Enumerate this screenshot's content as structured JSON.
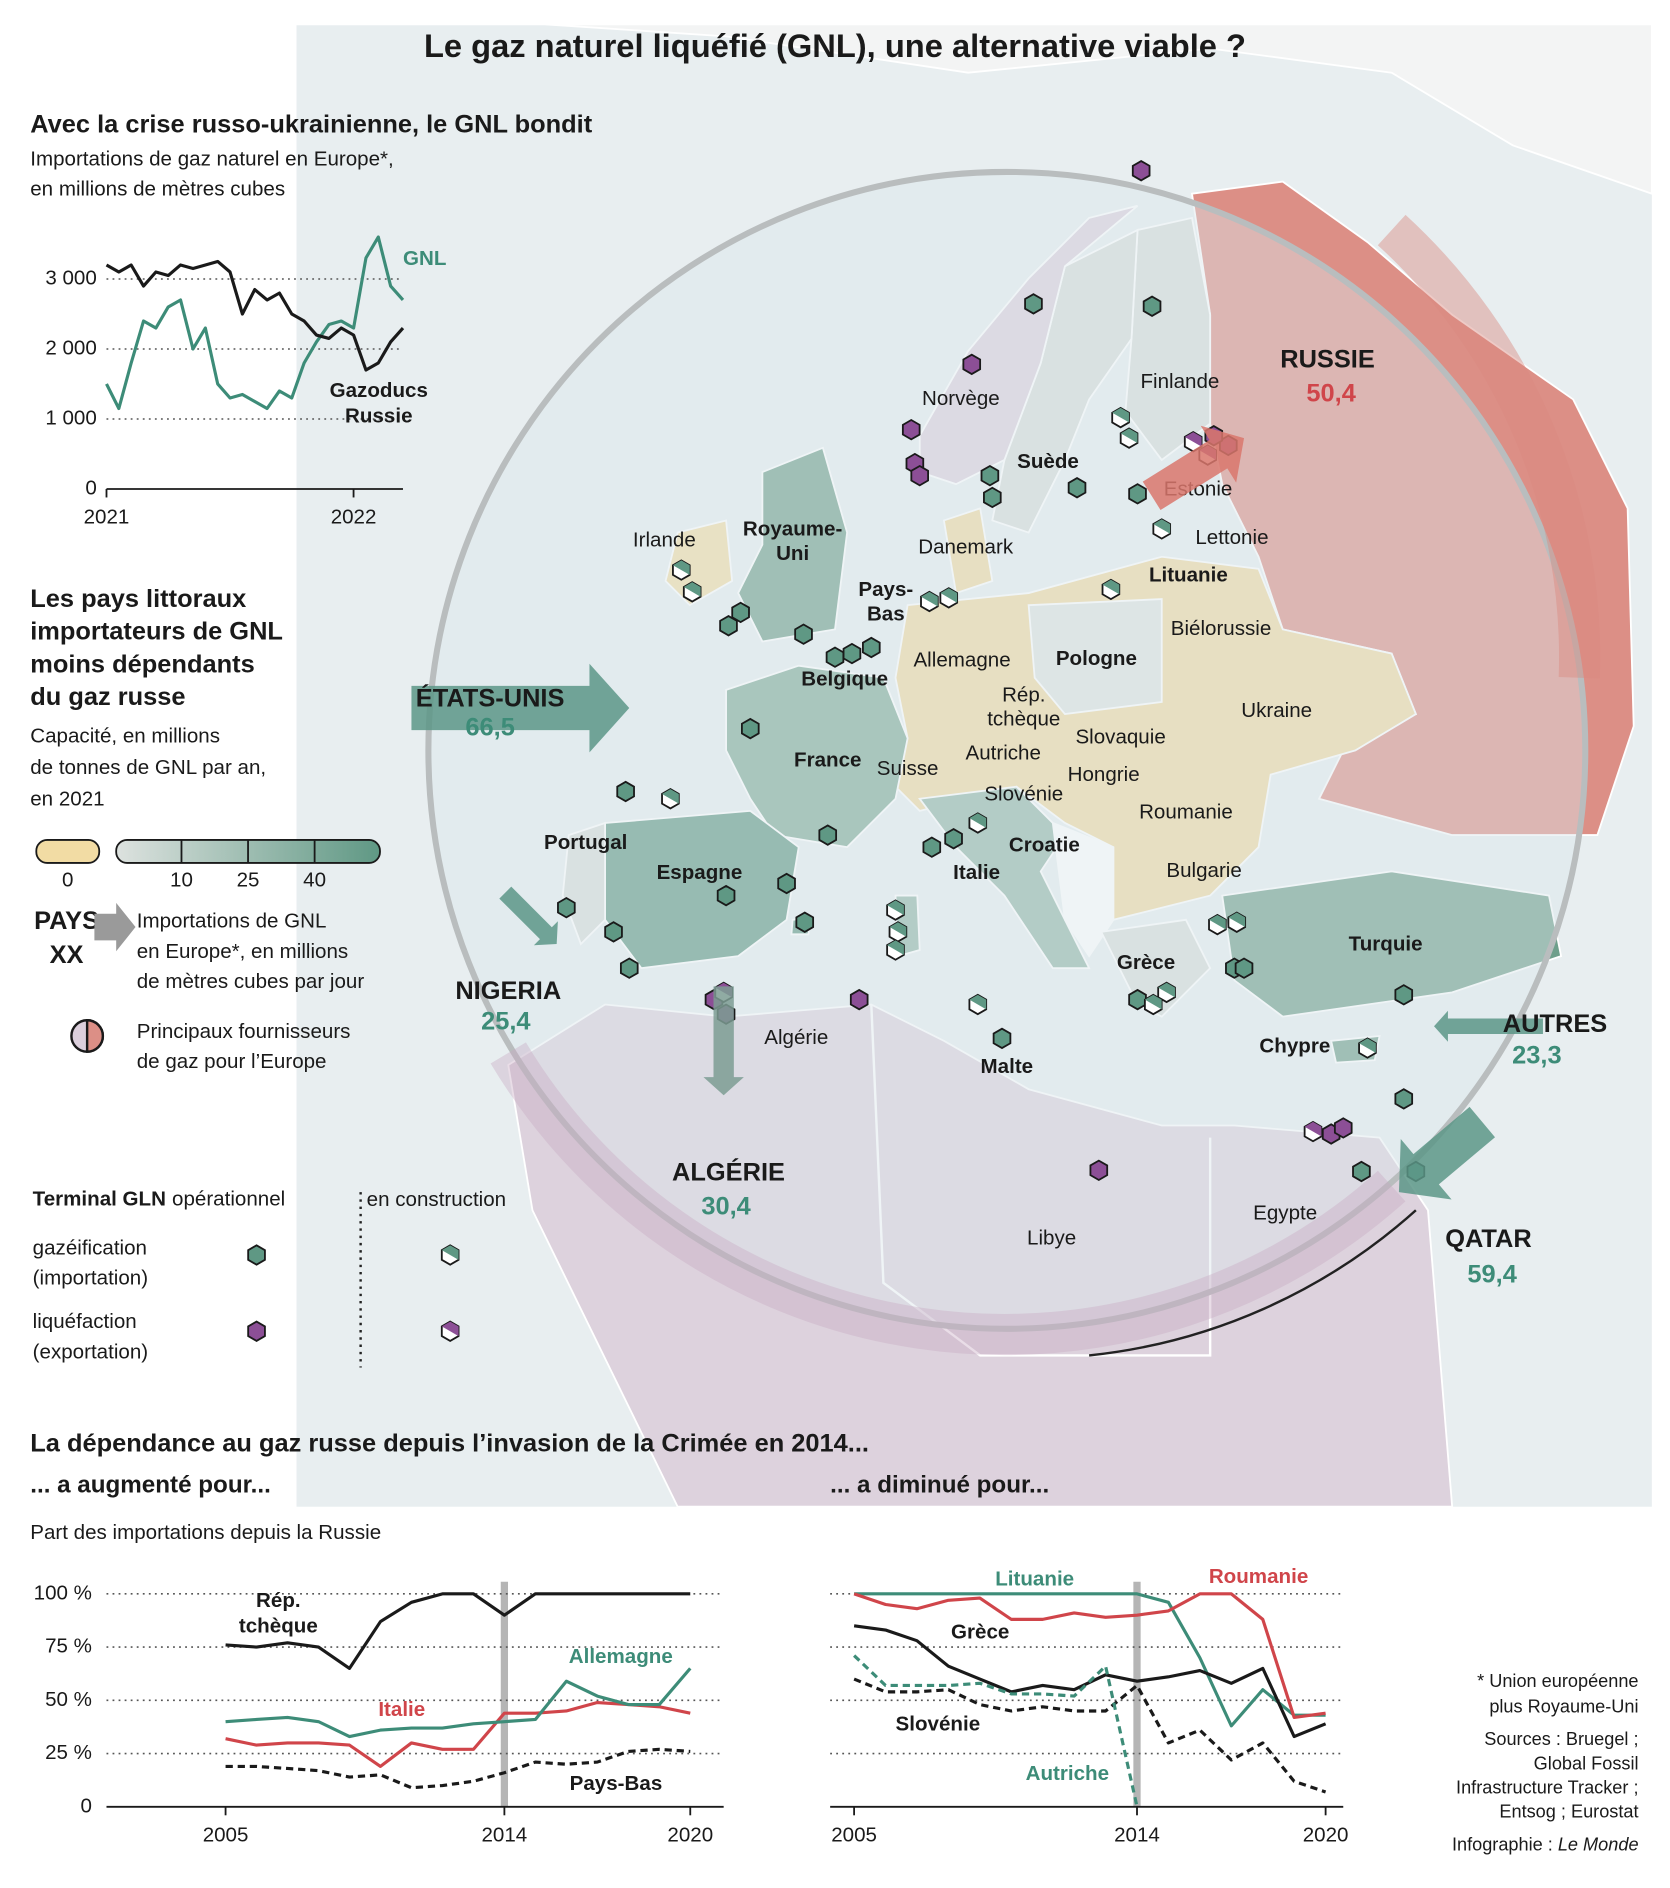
{
  "title": "Le gaz naturel liquéfié (GNL), une alternative viable ?",
  "chart_data": [
    {
      "type": "line",
      "title": "Avec la crise russo-ukrainienne, le GNL bondit",
      "subtitle": [
        "Importations de gaz naturel en Europe*,",
        "en millions de mètres cubes"
      ],
      "x": [
        2021,
        2021.05,
        2021.1,
        2021.15,
        2021.2,
        2021.25,
        2021.3,
        2021.35,
        2021.4,
        2021.45,
        2021.5,
        2021.55,
        2021.6,
        2021.65,
        2021.7,
        2021.75,
        2021.8,
        2021.85,
        2021.9,
        2021.95,
        2022,
        2022.05,
        2022.1,
        2022.15,
        2022.2
      ],
      "xlim": [
        2021,
        2022.2
      ],
      "xticks": [
        2021,
        2022
      ],
      "ylim": [
        0,
        3700
      ],
      "yticks": [
        0,
        {
          "value": 1000,
          "label": "1 000"
        },
        {
          "value": 2000,
          "label": "2 000"
        },
        {
          "value": 3000,
          "label": "3 000"
        }
      ],
      "grid": true,
      "series": [
        {
          "name": "GNL",
          "color": "#3d8c78",
          "values": [
            1500,
            1150,
            1800,
            2400,
            2300,
            2600,
            2700,
            2000,
            2300,
            1500,
            1300,
            1350,
            1250,
            1150,
            1400,
            1300,
            1800,
            2100,
            2350,
            2400,
            2300,
            3300,
            3600,
            2900,
            2700
          ]
        },
        {
          "name": "Gazoducs Russie",
          "color": "#1a1a1a",
          "values": [
            3200,
            3100,
            3200,
            2900,
            3100,
            3050,
            3200,
            3150,
            3200,
            3250,
            3100,
            2500,
            2850,
            2700,
            2800,
            2500,
            2400,
            2200,
            2150,
            2300,
            2200,
            1700,
            1800,
            2100,
            2300
          ]
        }
      ]
    },
    {
      "type": "line",
      "title": "... a augmenté pour...",
      "subtitle": "Part des importations depuis la Russie",
      "x": [
        2005,
        2006,
        2007,
        2008,
        2009,
        2010,
        2011,
        2012,
        2013,
        2014,
        2015,
        2016,
        2017,
        2018,
        2019,
        2020
      ],
      "xlim": [
        2001,
        2021
      ],
      "xticks": [
        2005,
        2014,
        2020
      ],
      "highlight": 2014,
      "ylim": [
        0,
        100
      ],
      "yticks": [
        0,
        {
          "value": 25,
          "label": "25 %"
        },
        {
          "value": 50,
          "label": "50 %"
        },
        {
          "value": 75,
          "label": "75 %"
        },
        {
          "value": 100,
          "label": "100 %"
        }
      ],
      "grid": true,
      "series": [
        {
          "name": "Rép. tchèque",
          "color": "#1a1a1a",
          "values": [
            76,
            75,
            77,
            75,
            65,
            87,
            96,
            100,
            100,
            90,
            100,
            100,
            100,
            100,
            100,
            100
          ]
        },
        {
          "name": "Italie",
          "color": "#d0454a",
          "values": [
            32,
            29,
            30,
            30,
            29,
            19,
            30,
            27,
            27,
            44,
            44,
            45,
            49,
            48,
            47,
            44
          ]
        },
        {
          "name": "Allemagne",
          "color": "#3d8c78",
          "values": [
            40,
            41,
            42,
            40,
            33,
            36,
            37,
            37,
            39,
            40,
            41,
            59,
            52,
            48,
            48,
            65
          ]
        },
        {
          "name": "Pays-Bas",
          "color": "#1a1a1a",
          "dash": true,
          "values": [
            19,
            19,
            18,
            17,
            14,
            15,
            9,
            10,
            12,
            16,
            21,
            20,
            21,
            26,
            27,
            26
          ]
        }
      ]
    },
    {
      "type": "line",
      "title": "... a diminué pour...",
      "x": [
        2005,
        2006,
        2007,
        2008,
        2009,
        2010,
        2011,
        2012,
        2013,
        2014,
        2015,
        2016,
        2017,
        2018,
        2019,
        2020
      ],
      "xlim": [
        2004.2,
        2020.6
      ],
      "xticks": [
        2005,
        2014,
        2020
      ],
      "highlight": 2014,
      "ylim": [
        0,
        100
      ],
      "yticks": [
        0,
        25,
        50,
        75,
        100
      ],
      "grid": true,
      "series": [
        {
          "name": "Lituanie",
          "color": "#3d8c78",
          "values": [
            100,
            100,
            100,
            100,
            100,
            100,
            100,
            100,
            100,
            100,
            96,
            70,
            38,
            55,
            43,
            43
          ]
        },
        {
          "name": "Roumanie",
          "color": "#d0454a",
          "values": [
            100,
            95,
            93,
            97,
            98,
            88,
            88,
            91,
            89,
            90,
            92,
            100,
            100,
            88,
            42,
            44
          ]
        },
        {
          "name": "Grèce",
          "color": "#1a1a1a",
          "values": [
            85,
            83,
            78,
            66,
            60,
            54,
            57,
            55,
            62,
            59,
            61,
            64,
            58,
            65,
            33,
            39
          ]
        },
        {
          "name": "Slovénie",
          "color": "#1a1a1a",
          "dash": true,
          "values": [
            60,
            54,
            54,
            55,
            48,
            45,
            47,
            45,
            45,
            57,
            30,
            36,
            22,
            30,
            12,
            7
          ]
        },
        {
          "name": "Autriche",
          "color": "#3d8c78",
          "dash": true,
          "values": [
            71,
            57,
            57,
            57,
            58,
            53,
            53,
            52,
            66,
            0,
            null,
            null,
            null,
            null,
            null,
            null
          ]
        }
      ]
    }
  ],
  "map": {
    "countries": [
      "Norvège",
      "Finlande",
      "Suède",
      "Estonie",
      "Lettonie",
      "Lituanie",
      "Irlande",
      [
        "Royaume-",
        "Uni"
      ],
      "Danemark",
      [
        "Pays-",
        "Bas"
      ],
      "Biélorussie",
      "Pologne",
      "Allemagne",
      "Belgique",
      "Ukraine",
      [
        "Rép.",
        "tchèque"
      ],
      "Slovaquie",
      "France",
      "Autriche",
      "Suisse",
      "Hongrie",
      "Slovénie",
      "Roumanie",
      "Croatie",
      "Portugal",
      "Espagne",
      "Italie",
      "Bulgarie",
      "Turquie",
      "Grèce",
      "Algérie",
      "Malte",
      "Chypre",
      "Libye",
      "Egypte"
    ],
    "suppliers": [
      {
        "name": "RUSSIE",
        "value": 50.4,
        "label": "50,4",
        "color": "#d9776c"
      },
      {
        "name": "ÉTATS-UNIS",
        "value": 66.5,
        "label": "66,5",
        "color": "#5c9787"
      },
      {
        "name": "NIGERIA",
        "value": 25.4,
        "label": "25,4",
        "color": "#5c9787"
      },
      {
        "name": "ALGÉRIE",
        "value": 30.4,
        "label": "30,4",
        "color": "#7c9c93"
      },
      {
        "name": "AUTRES",
        "value": 23.3,
        "label": "23,3",
        "color": "#5c9787"
      },
      {
        "name": "QATAR",
        "value": 59.4,
        "label": "59,4",
        "color": "#5c9787"
      }
    ]
  },
  "legend": {
    "title": [
      "Les pays littoraux",
      "importateurs de GNL",
      "moins dépendants",
      "du gaz russe"
    ],
    "subtitle": [
      "Capacité, en millions",
      "de tonnes de GNL par an,",
      "en 2021"
    ],
    "scale": [
      0,
      10,
      25,
      40
    ],
    "arrow_key": [
      "PAYS",
      "XX"
    ],
    "arrow_text": [
      "Importations de GNL",
      "en Europe*, en millions",
      "de mètres cubes par jour"
    ],
    "supplier_text": [
      "Principaux fournisseurs",
      "de gaz pour l’Europe"
    ],
    "terminals": {
      "title": "Terminal GLN",
      "operational": "opérationnel",
      "construction": "en construction",
      "types": [
        [
          "gazéification",
          "(importation)"
        ],
        [
          "liquéfaction",
          "(exportation)"
        ]
      ]
    }
  },
  "bottom": {
    "title": "La dépendance au gaz russe depuis l’invasion de la Crimée en 2014...",
    "footnote": [
      "* Union européenne",
      "plus Royaume-Uni"
    ],
    "sources": [
      "Sources : Bruegel ;",
      "Global Fossil",
      "Infrastructure Tracker ;",
      "Entsog ; Eurostat"
    ],
    "credit": [
      "Infographie : ",
      "Le Monde"
    ]
  }
}
